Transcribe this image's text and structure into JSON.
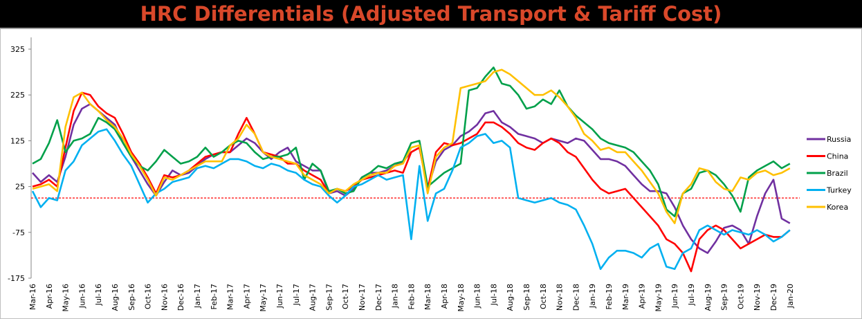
{
  "chart_data": {
    "type": "line",
    "title": "HRC Differentials (Adjusted Transport & Tariff Cost)",
    "xlabel": "",
    "ylabel": "",
    "ylim": [
      -175,
      325
    ],
    "yticks": [
      -175,
      -75,
      25,
      125,
      225,
      325
    ],
    "reference_line": {
      "value": 0,
      "color": "#FF0000",
      "style": "dashed"
    },
    "x_step_months": 0.5,
    "x_tick_labels": [
      "Mar-16",
      "Apr-16",
      "May-16",
      "Jun-16",
      "Jul-16",
      "Aug-16",
      "Sep-16",
      "Oct-16",
      "Nov-16",
      "Dec-16",
      "Jan-17",
      "Feb-17",
      "Mar-17",
      "Apr-17",
      "May-17",
      "Jun-17",
      "Jul-17",
      "Aug-17",
      "Sep-17",
      "Oct-17",
      "Nov-17",
      "Dec-17",
      "Jan-18",
      "Feb-18",
      "Mar-18",
      "Apr-18",
      "May-18",
      "Jun-18",
      "Jul-18",
      "Aug-18",
      "Sep-18",
      "Oct-18",
      "Nov-18",
      "Dec-18",
      "Jan-19",
      "Feb-19",
      "Mar-19",
      "Apr-19",
      "May-19",
      "Jun-19",
      "Jul-19",
      "Aug-19",
      "Sep-19",
      "Oct-19",
      "Nov-19",
      "Dec-19",
      "Jan-20"
    ],
    "grid": false,
    "legend_position": "right",
    "series": [
      {
        "name": "Russia",
        "color": "#7030A0",
        "values": [
          55,
          35,
          50,
          35,
          90,
          160,
          195,
          205,
          190,
          175,
          160,
          120,
          90,
          60,
          30,
          5,
          35,
          60,
          50,
          55,
          70,
          85,
          95,
          100,
          100,
          115,
          130,
          120,
          100,
          85,
          100,
          110,
          80,
          70,
          60,
          60,
          10,
          15,
          5,
          20,
          45,
          55,
          55,
          60,
          70,
          80,
          100,
          110,
          20,
          80,
          105,
          115,
          135,
          145,
          160,
          185,
          190,
          165,
          155,
          140,
          135,
          130,
          120,
          130,
          125,
          120,
          130,
          125,
          105,
          85,
          85,
          80,
          70,
          50,
          30,
          15,
          15,
          10,
          -20,
          -60,
          -90,
          -110,
          -120,
          -95,
          -65,
          -60,
          -70,
          -100,
          -40,
          10,
          40,
          -45,
          -55
        ]
      },
      {
        "name": "China",
        "color": "#FF0000",
        "values": [
          25,
          30,
          40,
          25,
          110,
          190,
          230,
          225,
          200,
          185,
          175,
          140,
          100,
          75,
          45,
          10,
          50,
          45,
          50,
          60,
          75,
          90,
          95,
          100,
          100,
          140,
          175,
          140,
          100,
          95,
          90,
          75,
          75,
          60,
          50,
          40,
          10,
          20,
          15,
          25,
          40,
          45,
          50,
          55,
          60,
          55,
          100,
          110,
          20,
          100,
          120,
          115,
          120,
          130,
          140,
          165,
          165,
          155,
          140,
          120,
          110,
          105,
          120,
          130,
          120,
          100,
          90,
          65,
          40,
          20,
          10,
          15,
          20,
          0,
          -20,
          -40,
          -60,
          -90,
          -100,
          -120,
          -160,
          -90,
          -70,
          -60,
          -70,
          -90,
          -110,
          -100,
          -90,
          -80,
          -85,
          -85,
          -70
        ]
      },
      {
        "name": "Brazil",
        "color": "#00A04A",
        "values": [
          75,
          85,
          120,
          170,
          100,
          125,
          130,
          140,
          175,
          165,
          150,
          120,
          90,
          70,
          60,
          80,
          105,
          90,
          75,
          80,
          90,
          110,
          90,
          100,
          115,
          125,
          120,
          100,
          85,
          90,
          90,
          95,
          110,
          40,
          75,
          60,
          15,
          20,
          10,
          15,
          45,
          55,
          70,
          65,
          75,
          80,
          120,
          125,
          25,
          40,
          55,
          65,
          75,
          235,
          240,
          265,
          285,
          250,
          245,
          225,
          195,
          200,
          215,
          205,
          235,
          200,
          180,
          165,
          150,
          130,
          120,
          115,
          110,
          100,
          80,
          60,
          30,
          -25,
          -40,
          10,
          20,
          55,
          60,
          50,
          30,
          5,
          -30,
          45,
          60,
          70,
          80,
          65,
          75
        ]
      },
      {
        "name": "Turkey",
        "color": "#00B0F0",
        "values": [
          15,
          -20,
          0,
          -5,
          60,
          80,
          115,
          130,
          145,
          150,
          125,
          95,
          70,
          30,
          -10,
          10,
          20,
          35,
          40,
          45,
          65,
          70,
          65,
          75,
          85,
          85,
          80,
          70,
          65,
          75,
          70,
          60,
          55,
          40,
          30,
          25,
          5,
          -10,
          5,
          25,
          30,
          40,
          50,
          40,
          45,
          50,
          -90,
          70,
          -50,
          10,
          20,
          60,
          110,
          120,
          135,
          140,
          120,
          125,
          110,
          0,
          -5,
          -10,
          -5,
          0,
          -10,
          -15,
          -25,
          -60,
          -100,
          -155,
          -130,
          -115,
          -115,
          -120,
          -130,
          -110,
          -100,
          -150,
          -155,
          -120,
          -110,
          -70,
          -60,
          -70,
          -80,
          -70,
          -75,
          -80,
          -70,
          -80,
          -95,
          -85,
          -70
        ]
      },
      {
        "name": "Korea",
        "color": "#FFC000",
        "values": [
          20,
          25,
          30,
          15,
          155,
          220,
          230,
          205,
          190,
          170,
          155,
          130,
          95,
          70,
          40,
          5,
          45,
          40,
          50,
          60,
          70,
          80,
          80,
          80,
          115,
          130,
          160,
          140,
          100,
          90,
          85,
          80,
          75,
          50,
          40,
          30,
          10,
          20,
          15,
          30,
          40,
          50,
          55,
          55,
          70,
          75,
          110,
          115,
          10,
          90,
          110,
          120,
          240,
          245,
          250,
          255,
          275,
          280,
          270,
          255,
          240,
          225,
          225,
          235,
          220,
          200,
          175,
          140,
          125,
          105,
          110,
          100,
          100,
          80,
          60,
          35,
          10,
          -30,
          -55,
          10,
          30,
          65,
          60,
          35,
          20,
          15,
          45,
          40,
          55,
          60,
          50,
          55,
          65
        ]
      }
    ]
  }
}
